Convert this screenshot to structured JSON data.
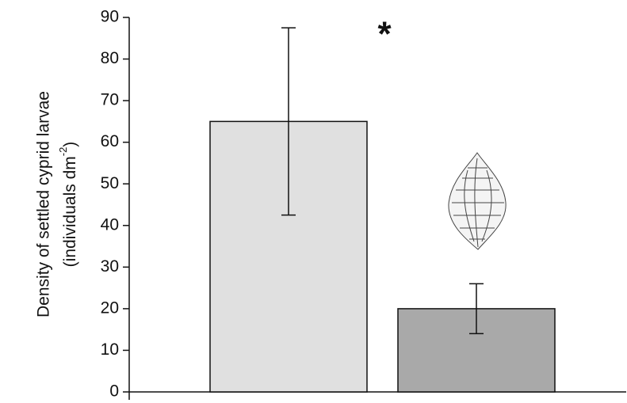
{
  "chart_data": {
    "type": "bar",
    "categories": [
      null,
      null
    ],
    "values": [
      65,
      20
    ],
    "errors": [
      22.5,
      6
    ],
    "colors": [
      "#e0e0e0",
      "#a9a9a9"
    ],
    "ylim": [
      0,
      90
    ],
    "yticks": [
      0,
      10,
      20,
      30,
      40,
      50,
      60,
      70,
      80,
      90
    ],
    "y_label": {
      "line1": "Density of settled cyprid larvae",
      "line2": "(individuals dm",
      "superscript": "-2",
      "line2_end": ")"
    },
    "annotation": "*"
  }
}
